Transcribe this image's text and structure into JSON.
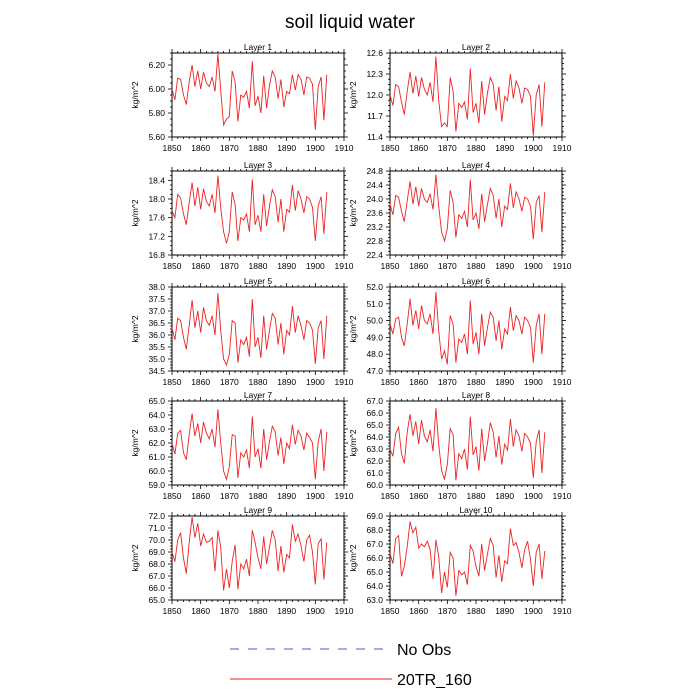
{
  "figure": {
    "title": "soil liquid water",
    "legend": [
      {
        "label": "No Obs",
        "color": "#5555cc",
        "dashed": true
      },
      {
        "label": "20TR_160",
        "color": "#ee2222",
        "dashed": false
      }
    ]
  },
  "chart_data": [
    {
      "type": "line",
      "title": "Layer 1",
      "xlabel": "",
      "ylabel": "kg/m^2",
      "xlim": [
        1850,
        1910
      ],
      "ylim": [
        5.6,
        6.3
      ],
      "xticks": [
        1850,
        1860,
        1870,
        1880,
        1890,
        1900,
        1910
      ],
      "yticks": [
        5.6,
        5.8,
        6.0,
        6.2
      ],
      "ytick_labels": [
        "5.60",
        "5.80",
        "6.00",
        "6.20"
      ],
      "series": [
        {
          "name": "20TR_160",
          "x0": 1850,
          "values": [
            6.0,
            5.91,
            6.09,
            6.08,
            5.95,
            5.87,
            6.06,
            6.2,
            6.02,
            6.15,
            6.0,
            6.14,
            6.05,
            6.02,
            6.1,
            5.98,
            6.29,
            5.99,
            5.7,
            5.75,
            5.77,
            6.15,
            6.06,
            5.73,
            5.95,
            5.93,
            5.98,
            5.84,
            6.23,
            5.86,
            5.94,
            5.8,
            6.11,
            5.84,
            6.03,
            6.15,
            6.1,
            5.92,
            6.08,
            5.85,
            5.98,
            5.96,
            6.12,
            5.99,
            6.12,
            6.08,
            5.95,
            6.1,
            6.09,
            6.04,
            5.66,
            6.02,
            6.1,
            5.74,
            6.12
          ],
          "color": "#ee2222"
        }
      ]
    },
    {
      "type": "line",
      "title": "Layer 2",
      "xlabel": "",
      "ylabel": "kg/m^2",
      "xlim": [
        1850,
        1910
      ],
      "ylim": [
        11.4,
        12.6
      ],
      "xticks": [
        1850,
        1860,
        1870,
        1880,
        1890,
        1900,
        1910
      ],
      "yticks": [
        11.4,
        11.7,
        12.0,
        12.3,
        12.6
      ],
      "ytick_labels": [
        "11.4",
        "11.7",
        "12.0",
        "12.3",
        "12.6"
      ],
      "series": [
        {
          "name": "20TR_160",
          "x0": 1850,
          "values": [
            12.0,
            11.85,
            12.15,
            12.12,
            11.9,
            11.72,
            12.05,
            12.33,
            12.02,
            12.27,
            11.98,
            12.25,
            12.08,
            12.0,
            12.18,
            11.9,
            12.55,
            11.92,
            11.55,
            11.6,
            11.55,
            12.25,
            12.05,
            11.48,
            11.88,
            11.82,
            11.9,
            11.65,
            12.38,
            11.75,
            11.88,
            11.6,
            12.2,
            11.72,
            12.03,
            12.25,
            12.15,
            11.78,
            12.12,
            11.62,
            11.98,
            11.92,
            12.3,
            11.95,
            12.2,
            12.1,
            11.88,
            12.1,
            12.08,
            11.98,
            11.42,
            12.0,
            12.15,
            11.55,
            12.18
          ],
          "color": "#ee2222"
        }
      ]
    },
    {
      "type": "line",
      "title": "Layer 3",
      "xlabel": "",
      "ylabel": "kg/m^2",
      "xlim": [
        1850,
        1910
      ],
      "ylim": [
        16.8,
        18.6
      ],
      "xticks": [
        1850,
        1860,
        1870,
        1880,
        1890,
        1900,
        1910
      ],
      "yticks": [
        16.8,
        17.2,
        17.6,
        18.0,
        18.4
      ],
      "ytick_labels": [
        "16.8",
        "17.2",
        "17.6",
        "18.0",
        "18.4"
      ],
      "series": [
        {
          "name": "20TR_160",
          "x0": 1850,
          "values": [
            17.75,
            17.6,
            18.1,
            18.02,
            17.68,
            17.45,
            17.92,
            18.35,
            17.85,
            18.25,
            17.78,
            18.22,
            17.95,
            17.85,
            18.1,
            17.7,
            18.5,
            17.82,
            17.3,
            17.05,
            17.3,
            18.15,
            17.88,
            17.1,
            17.6,
            17.55,
            17.68,
            17.3,
            18.42,
            17.45,
            17.65,
            17.3,
            18.1,
            17.42,
            17.85,
            18.2,
            18.05,
            17.5,
            18.0,
            17.3,
            17.78,
            17.72,
            18.3,
            17.75,
            18.18,
            18.0,
            17.7,
            18.05,
            18.0,
            17.82,
            17.1,
            17.85,
            18.05,
            17.25,
            18.15
          ],
          "color": "#ee2222"
        }
      ]
    },
    {
      "type": "line",
      "title": "Layer 4",
      "xlabel": "",
      "ylabel": "kg/m^2",
      "xlim": [
        1850,
        1910
      ],
      "ylim": [
        22.4,
        24.8
      ],
      "xticks": [
        1850,
        1860,
        1870,
        1880,
        1890,
        1900,
        1910
      ],
      "yticks": [
        22.4,
        22.8,
        23.2,
        23.6,
        24.0,
        24.4,
        24.8
      ],
      "ytick_labels": [
        "22.4",
        "22.8",
        "23.2",
        "23.6",
        "24.0",
        "24.4",
        "24.8"
      ],
      "series": [
        {
          "name": "20TR_160",
          "x0": 1850,
          "values": [
            23.85,
            23.55,
            24.1,
            24.05,
            23.65,
            23.35,
            23.95,
            24.5,
            23.85,
            24.35,
            23.8,
            24.3,
            24.0,
            23.9,
            24.15,
            23.7,
            24.7,
            23.8,
            23.05,
            22.8,
            23.15,
            24.25,
            23.9,
            22.9,
            23.55,
            23.45,
            23.65,
            23.2,
            24.55,
            23.4,
            23.6,
            23.15,
            24.15,
            23.35,
            23.85,
            24.3,
            24.1,
            23.45,
            24.0,
            23.2,
            23.8,
            23.7,
            24.45,
            23.75,
            24.2,
            24.0,
            23.65,
            24.05,
            24.0,
            23.8,
            22.85,
            23.9,
            24.1,
            23.05,
            24.2
          ],
          "color": "#ee2222"
        }
      ]
    },
    {
      "type": "line",
      "title": "Layer 5",
      "xlabel": "",
      "ylabel": "kg/m^2",
      "xlim": [
        1850,
        1910
      ],
      "ylim": [
        34.5,
        38.0
      ],
      "xticks": [
        1850,
        1860,
        1870,
        1880,
        1890,
        1900,
        1910
      ],
      "yticks": [
        34.5,
        35.0,
        35.5,
        36.0,
        36.5,
        37.0,
        37.5,
        38.0
      ],
      "ytick_labels": [
        "34.5",
        "35.0",
        "35.5",
        "36.0",
        "36.5",
        "37.0",
        "37.5",
        "38.0"
      ],
      "series": [
        {
          "name": "20TR_160",
          "x0": 1850,
          "values": [
            36.3,
            35.8,
            36.7,
            36.6,
            35.9,
            35.4,
            36.4,
            37.45,
            36.3,
            37.0,
            36.1,
            37.15,
            36.6,
            36.4,
            36.8,
            36.0,
            37.75,
            36.2,
            35.0,
            34.75,
            35.2,
            36.6,
            36.5,
            34.85,
            35.8,
            35.6,
            35.9,
            35.1,
            37.5,
            35.5,
            35.9,
            35.05,
            36.8,
            35.4,
            36.2,
            36.9,
            36.7,
            35.6,
            36.5,
            35.2,
            36.2,
            36.0,
            37.2,
            36.1,
            36.8,
            36.4,
            35.8,
            36.6,
            36.5,
            36.2,
            34.8,
            36.3,
            36.6,
            35.0,
            36.8
          ],
          "color": "#ee2222"
        }
      ]
    },
    {
      "type": "line",
      "title": "Layer 6",
      "xlabel": "",
      "ylabel": "kg/m^2",
      "xlim": [
        1850,
        1910
      ],
      "ylim": [
        47.0,
        52.0
      ],
      "xticks": [
        1850,
        1860,
        1870,
        1880,
        1890,
        1900,
        1910
      ],
      "yticks": [
        47.0,
        48.0,
        49.0,
        50.0,
        51.0,
        52.0
      ],
      "ytick_labels": [
        "47.0",
        "48.0",
        "49.0",
        "50.0",
        "51.0",
        "52.0"
      ],
      "series": [
        {
          "name": "20TR_160",
          "x0": 1850,
          "values": [
            49.8,
            49.2,
            50.1,
            50.2,
            49.0,
            48.5,
            49.8,
            51.3,
            49.7,
            50.6,
            49.5,
            50.9,
            50.0,
            49.8,
            50.4,
            49.2,
            51.7,
            49.4,
            47.7,
            48.2,
            47.4,
            50.3,
            49.8,
            47.5,
            48.9,
            48.7,
            49.2,
            48.0,
            51.2,
            48.6,
            49.3,
            48.0,
            50.4,
            48.5,
            49.6,
            50.5,
            50.2,
            48.8,
            50.0,
            48.3,
            49.5,
            49.2,
            50.8,
            49.4,
            50.3,
            50.0,
            49.2,
            50.2,
            50.0,
            49.6,
            47.5,
            49.7,
            50.4,
            48.0,
            50.4
          ],
          "color": "#ee2222"
        }
      ]
    },
    {
      "type": "line",
      "title": "Layer 7",
      "xlabel": "",
      "ylabel": "kg/m^2",
      "xlim": [
        1850,
        1910
      ],
      "ylim": [
        59.0,
        65.0
      ],
      "xticks": [
        1850,
        1860,
        1870,
        1880,
        1890,
        1900,
        1910
      ],
      "yticks": [
        59.0,
        60.0,
        61.0,
        62.0,
        63.0,
        64.0,
        65.0
      ],
      "ytick_labels": [
        "59.0",
        "60.0",
        "61.0",
        "62.0",
        "63.0",
        "64.0",
        "65.0"
      ],
      "series": [
        {
          "name": "20TR_160",
          "x0": 1850,
          "values": [
            62.0,
            61.2,
            62.7,
            62.9,
            61.3,
            60.8,
            62.6,
            64.1,
            62.5,
            63.4,
            62.0,
            63.5,
            62.7,
            62.3,
            63.0,
            61.7,
            64.4,
            62.0,
            60.0,
            59.4,
            60.3,
            62.6,
            62.5,
            59.5,
            61.3,
            61.0,
            61.5,
            60.2,
            63.9,
            61.0,
            61.6,
            60.2,
            63.0,
            60.8,
            62.1,
            63.2,
            62.8,
            61.1,
            62.4,
            60.5,
            62.0,
            61.6,
            63.3,
            61.9,
            62.9,
            62.5,
            61.5,
            62.7,
            62.4,
            62.0,
            59.4,
            62.1,
            63.0,
            60.0,
            62.8
          ],
          "color": "#ee2222"
        }
      ]
    },
    {
      "type": "line",
      "title": "Layer 8",
      "xlabel": "",
      "ylabel": "kg/m^2",
      "xlim": [
        1850,
        1910
      ],
      "ylim": [
        60.0,
        67.0
      ],
      "xticks": [
        1850,
        1860,
        1870,
        1880,
        1890,
        1900,
        1910
      ],
      "yticks": [
        60.0,
        61.0,
        62.0,
        63.0,
        64.0,
        65.0,
        66.0,
        67.0
      ],
      "ytick_labels": [
        "60.0",
        "61.0",
        "62.0",
        "63.0",
        "64.0",
        "65.0",
        "66.0",
        "67.0"
      ],
      "series": [
        {
          "name": "20TR_160",
          "x0": 1850,
          "values": [
            63.0,
            62.4,
            64.3,
            64.8,
            62.6,
            61.8,
            64.4,
            65.9,
            64.1,
            65.3,
            63.4,
            65.4,
            64.1,
            63.6,
            64.6,
            62.8,
            66.4,
            63.4,
            61.2,
            60.5,
            61.7,
            64.7,
            64.2,
            60.4,
            62.6,
            62.2,
            63.0,
            61.3,
            65.7,
            62.5,
            63.2,
            61.2,
            64.7,
            62.0,
            63.5,
            65.2,
            64.4,
            62.3,
            64.1,
            61.7,
            63.4,
            62.9,
            65.5,
            63.2,
            64.6,
            64.1,
            62.8,
            64.3,
            64.0,
            63.5,
            60.6,
            63.6,
            64.6,
            61.0,
            64.4
          ],
          "color": "#ee2222"
        }
      ]
    },
    {
      "type": "line",
      "title": "Layer 9",
      "xlabel": "",
      "ylabel": "kg/m^2",
      "xlim": [
        1850,
        1910
      ],
      "ylim": [
        65.0,
        72.0
      ],
      "xticks": [
        1850,
        1860,
        1870,
        1880,
        1890,
        1900,
        1910
      ],
      "yticks": [
        65.0,
        66.0,
        67.0,
        68.0,
        69.0,
        70.0,
        71.0,
        72.0
      ],
      "ytick_labels": [
        "65.0",
        "66.0",
        "67.0",
        "68.0",
        "69.0",
        "70.0",
        "71.0",
        "72.0"
      ],
      "series": [
        {
          "name": "20TR_160",
          "x0": 1850,
          "values": [
            69.0,
            68.2,
            70.0,
            70.6,
            68.5,
            67.2,
            69.8,
            71.9,
            70.2,
            71.4,
            69.5,
            70.5,
            69.8,
            69.9,
            70.2,
            67.4,
            70.8,
            69.4,
            65.8,
            67.6,
            66.0,
            68.2,
            69.6,
            65.9,
            68.0,
            67.6,
            68.4,
            67.0,
            70.8,
            69.8,
            68.5,
            67.6,
            70.3,
            68.0,
            69.4,
            70.8,
            70.0,
            67.4,
            69.5,
            67.3,
            68.8,
            68.5,
            71.3,
            69.9,
            70.5,
            69.5,
            68.2,
            70.0,
            70.4,
            69.0,
            66.3,
            69.7,
            70.1,
            66.7,
            69.8
          ],
          "color": "#ee2222"
        }
      ]
    },
    {
      "type": "line",
      "title": "Layer 10",
      "xlabel": "",
      "ylabel": "kg/m^2",
      "xlim": [
        1850,
        1910
      ],
      "ylim": [
        63.0,
        69.0
      ],
      "xticks": [
        1850,
        1860,
        1870,
        1880,
        1890,
        1900,
        1910
      ],
      "yticks": [
        63.0,
        64.0,
        65.0,
        66.0,
        67.0,
        68.0,
        69.0
      ],
      "ytick_labels": [
        "63.0",
        "64.0",
        "65.0",
        "66.0",
        "67.0",
        "68.0",
        "69.0"
      ],
      "series": [
        {
          "name": "20TR_160",
          "x0": 1850,
          "values": [
            66.3,
            65.6,
            67.4,
            67.6,
            64.7,
            65.4,
            66.8,
            68.6,
            67.8,
            68.2,
            66.7,
            67.0,
            66.8,
            67.2,
            66.6,
            64.5,
            67.3,
            66.1,
            63.5,
            65.0,
            63.9,
            66.4,
            66.0,
            63.3,
            65.1,
            64.8,
            65.0,
            64.1,
            66.9,
            66.5,
            65.4,
            64.7,
            67.0,
            65.1,
            66.3,
            67.4,
            66.9,
            64.6,
            66.2,
            64.3,
            65.8,
            65.6,
            68.1,
            66.9,
            67.1,
            66.4,
            65.3,
            66.6,
            67.2,
            65.9,
            64.0,
            66.4,
            67.0,
            64.5,
            66.5
          ],
          "color": "#ee2222"
        }
      ]
    }
  ]
}
